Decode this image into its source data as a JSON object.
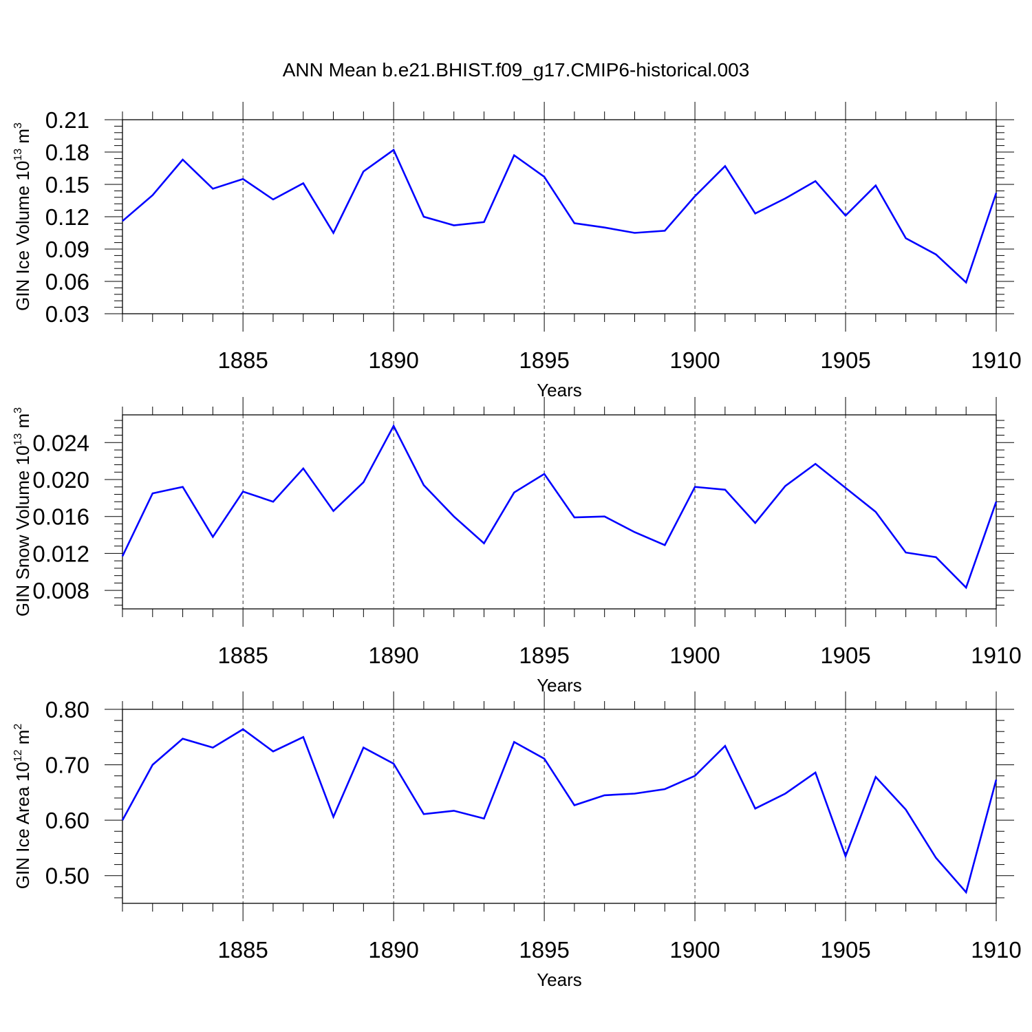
{
  "title": "ANN Mean b.e21.BHIST.f09_g17.CMIP6-historical.003",
  "colors": {
    "line": "#0000ff",
    "axis": "#000000",
    "grid": "#000000"
  },
  "chart_data": [
    {
      "type": "line",
      "ylabel": {
        "text": "GIN Ice Volume 10",
        "exp": "13",
        "unit": " m",
        "unit_exp": "3"
      },
      "xlabel": "Years",
      "xlim": [
        1881,
        1910
      ],
      "ylim": [
        0.03,
        0.21
      ],
      "xticks": [
        1885,
        1890,
        1895,
        1900,
        1905,
        1910
      ],
      "yticks": [
        0.03,
        0.06,
        0.09,
        0.12,
        0.15,
        0.18,
        0.21
      ],
      "ytick_labels": [
        "0.03",
        "0.06",
        "0.09",
        "0.12",
        "0.15",
        "0.18",
        "0.21"
      ],
      "grid": "dashed vertical at major x ticks",
      "x": [
        1881,
        1882,
        1883,
        1884,
        1885,
        1886,
        1887,
        1888,
        1889,
        1890,
        1891,
        1892,
        1893,
        1894,
        1895,
        1896,
        1897,
        1898,
        1899,
        1900,
        1901,
        1902,
        1903,
        1904,
        1905,
        1906,
        1907,
        1908,
        1909,
        1910
      ],
      "values": [
        0.116,
        0.14,
        0.173,
        0.146,
        0.155,
        0.136,
        0.151,
        0.105,
        0.162,
        0.182,
        0.12,
        0.112,
        0.115,
        0.177,
        0.157,
        0.114,
        0.11,
        0.105,
        0.107,
        0.139,
        0.167,
        0.123,
        0.137,
        0.153,
        0.121,
        0.149,
        0.1,
        0.085,
        0.059,
        0.142
      ]
    },
    {
      "type": "line",
      "ylabel": {
        "text": "GIN Snow Volume 10",
        "exp": "13",
        "unit": " m",
        "unit_exp": "3"
      },
      "xlabel": "Years",
      "xlim": [
        1881,
        1910
      ],
      "ylim": [
        0.006,
        0.027
      ],
      "xticks": [
        1885,
        1890,
        1895,
        1900,
        1905,
        1910
      ],
      "yticks": [
        0.008,
        0.012,
        0.016,
        0.02,
        0.024
      ],
      "ytick_labels": [
        "0.008",
        "0.012",
        "0.016",
        "0.020",
        "0.024"
      ],
      "grid": "dashed vertical at major x ticks",
      "x": [
        1881,
        1882,
        1883,
        1884,
        1885,
        1886,
        1887,
        1888,
        1889,
        1890,
        1891,
        1892,
        1893,
        1894,
        1895,
        1896,
        1897,
        1898,
        1899,
        1900,
        1901,
        1902,
        1903,
        1904,
        1905,
        1906,
        1907,
        1908,
        1909,
        1910
      ],
      "values": [
        0.0117,
        0.0185,
        0.0192,
        0.0138,
        0.0187,
        0.0176,
        0.0212,
        0.0166,
        0.0197,
        0.0258,
        0.0194,
        0.016,
        0.0131,
        0.0186,
        0.0206,
        0.0159,
        0.016,
        0.0143,
        0.0129,
        0.0192,
        0.0189,
        0.0153,
        0.0193,
        0.0217,
        0.0191,
        0.0165,
        0.0121,
        0.0116,
        0.0083,
        0.0176
      ]
    },
    {
      "type": "line",
      "ylabel": {
        "text": "GIN Ice Area 10",
        "exp": "12",
        "unit": " m",
        "unit_exp": "2"
      },
      "xlabel": "Years",
      "xlim": [
        1881,
        1910
      ],
      "ylim": [
        0.45,
        0.8
      ],
      "xticks": [
        1885,
        1890,
        1895,
        1900,
        1905,
        1910
      ],
      "yticks": [
        0.5,
        0.6,
        0.7,
        0.8
      ],
      "ytick_labels": [
        "0.50",
        "0.60",
        "0.70",
        "0.80"
      ],
      "grid": "dashed vertical at major x ticks",
      "x": [
        1881,
        1882,
        1883,
        1884,
        1885,
        1886,
        1887,
        1888,
        1889,
        1890,
        1891,
        1892,
        1893,
        1894,
        1895,
        1896,
        1897,
        1898,
        1899,
        1900,
        1901,
        1902,
        1903,
        1904,
        1905,
        1906,
        1907,
        1908,
        1909,
        1910
      ],
      "values": [
        0.6,
        0.7,
        0.747,
        0.731,
        0.764,
        0.724,
        0.75,
        0.606,
        0.731,
        0.702,
        0.611,
        0.617,
        0.603,
        0.741,
        0.711,
        0.627,
        0.645,
        0.648,
        0.656,
        0.68,
        0.734,
        0.621,
        0.648,
        0.686,
        0.535,
        0.678,
        0.619,
        0.532,
        0.47,
        0.673
      ]
    }
  ]
}
